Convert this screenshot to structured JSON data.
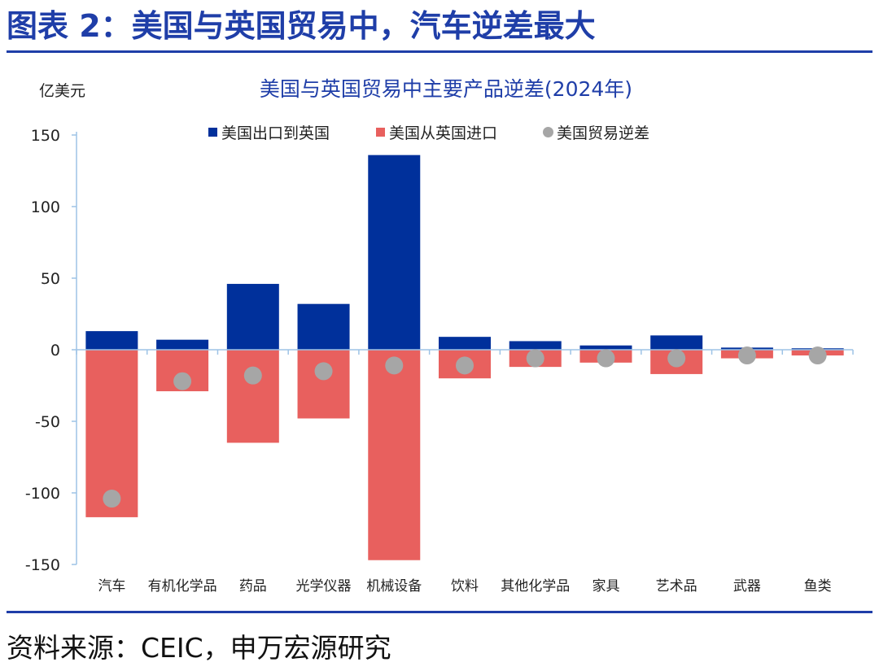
{
  "header": {
    "title": "图表 2：美国与英国贸易中，汽车逆差最大"
  },
  "footer": {
    "source": "资料来源：CEIC，申万宏源研究"
  },
  "colors": {
    "export": "#00309b",
    "import": "#e8605e",
    "deficit": "#a6a6a6",
    "accent": "#1f3ea8",
    "axis": "#9dc3e6"
  },
  "chart_data": {
    "type": "bar",
    "title": "美国与英国贸易中主要产品逆差(2024年)",
    "ylabel": "亿美元",
    "ylim": [
      -150,
      150
    ],
    "yticks": [
      150,
      100,
      50,
      0,
      -50,
      -100,
      -150
    ],
    "legend_position": "top",
    "categories": [
      "汽车",
      "有机化学品",
      "药品",
      "光学仪器",
      "机械设备",
      "饮料",
      "其他化学品",
      "家具",
      "艺术品",
      "武器",
      "鱼类"
    ],
    "series": [
      {
        "name": "美国出口到英国",
        "kind": "bar",
        "values": [
          13,
          7,
          46,
          32,
          136,
          9,
          6,
          3,
          10,
          1.5,
          1
        ]
      },
      {
        "name": "美国从英国进口",
        "kind": "bar",
        "values": [
          -117,
          -29,
          -65,
          -48,
          -147,
          -20,
          -12,
          -9,
          -17,
          -6,
          -4
        ]
      },
      {
        "name": "美国贸易逆差",
        "kind": "scatter",
        "values": [
          -104,
          -22,
          -18,
          -15,
          -11,
          -11,
          -6,
          -6,
          -6,
          -4,
          -4
        ]
      }
    ]
  }
}
